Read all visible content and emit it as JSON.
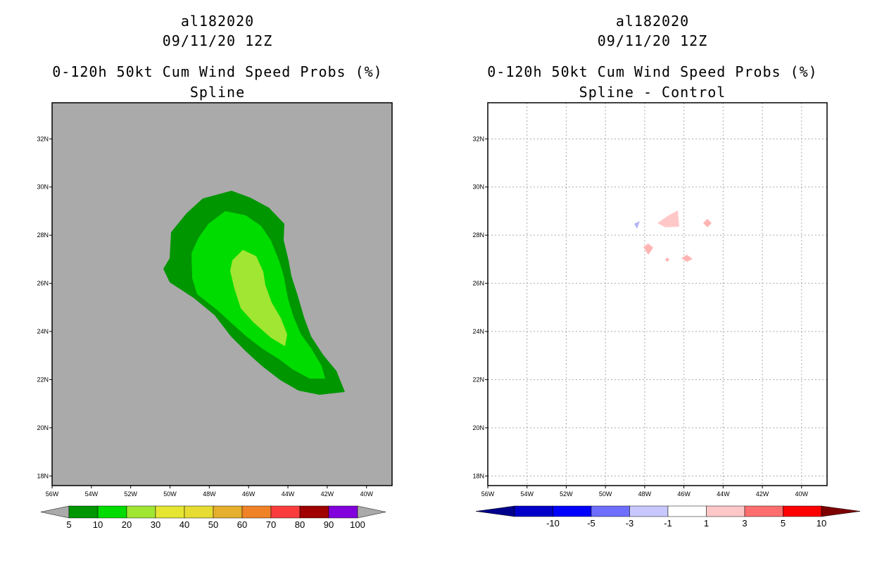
{
  "left": {
    "title1": "al182020",
    "title2": "09/11/20 12Z",
    "title3": "0-120h 50kt Cum Wind Speed Probs (%)",
    "title4": "Spline",
    "colorbar": {
      "labels": [
        "5",
        "10",
        "20",
        "30",
        "40",
        "50",
        "60",
        "70",
        "80",
        "90",
        "100"
      ],
      "colors": [
        "#009600",
        "#00dc00",
        "#a0e632",
        "#e6e632",
        "#e6dc32",
        "#e6af2d",
        "#f08228",
        "#fa3c3c",
        "#a00000",
        "#8200dc"
      ],
      "end_color": "#aaaaaa"
    },
    "background": "#aaaaaa"
  },
  "right": {
    "title1": "al182020",
    "title2": "09/11/20 12Z",
    "title3": "0-120h 50kt Cum Wind Speed Probs (%)",
    "title4": "Spline - Control",
    "colorbar": {
      "labels": [
        "-10",
        "-5",
        "-3",
        "-1",
        "1",
        "3",
        "5",
        "10"
      ],
      "colors": [
        "#0000c8",
        "#0000ff",
        "#6e6eff",
        "#c8c8ff",
        "#ffffff",
        "#ffc8c8",
        "#ff6e6e",
        "#ff0000"
      ],
      "left_end": "#00008c",
      "right_end": "#7d0000"
    }
  },
  "axes": {
    "lat_labels": [
      "32N",
      "30N",
      "28N",
      "26N",
      "24N",
      "22N",
      "20N",
      "18N"
    ],
    "lon_labels": [
      "56W",
      "54W",
      "52W",
      "50W",
      "48W",
      "46W",
      "44W",
      "42W",
      "40W"
    ],
    "lat_values": [
      32,
      30,
      28,
      26,
      24,
      22,
      20,
      18
    ],
    "lon_values": [
      56,
      54,
      52,
      50,
      48,
      46,
      44,
      42,
      40
    ]
  }
}
